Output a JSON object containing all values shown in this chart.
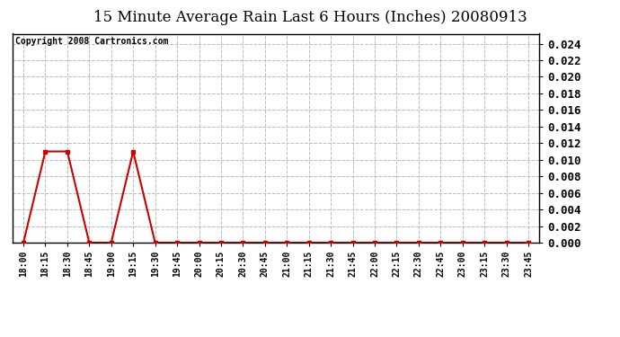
{
  "title": "15 Minute Average Rain Last 6 Hours (Inches) 20080913",
  "copyright_text": "Copyright 2008 Cartronics.com",
  "background_color": "#ffffff",
  "plot_bg_color": "#ffffff",
  "grid_color": "#bbbbbb",
  "line_color": "#cc0000",
  "marker_color": "#cc0000",
  "ylim": [
    0,
    0.0252
  ],
  "yticks": [
    0.0,
    0.002,
    0.004,
    0.006,
    0.008,
    0.01,
    0.012,
    0.014,
    0.016,
    0.018,
    0.02,
    0.022,
    0.024
  ],
  "time_labels": [
    "18:00",
    "18:15",
    "18:30",
    "18:45",
    "19:00",
    "19:15",
    "19:30",
    "19:45",
    "20:00",
    "20:15",
    "20:30",
    "20:45",
    "21:00",
    "21:15",
    "21:30",
    "21:45",
    "22:00",
    "22:15",
    "22:30",
    "22:45",
    "23:00",
    "23:15",
    "23:30",
    "23:45"
  ],
  "values": [
    0.0,
    0.011,
    0.011,
    0.0,
    0.0,
    0.011,
    0.0,
    0.0,
    0.0,
    0.0,
    0.0,
    0.0,
    0.0,
    0.0,
    0.0,
    0.0,
    0.0,
    0.0,
    0.0,
    0.0,
    0.0,
    0.0,
    0.0,
    0.0
  ],
  "title_fontsize": 12,
  "copyright_fontsize": 7,
  "ytick_fontsize": 9,
  "xtick_fontsize": 7
}
